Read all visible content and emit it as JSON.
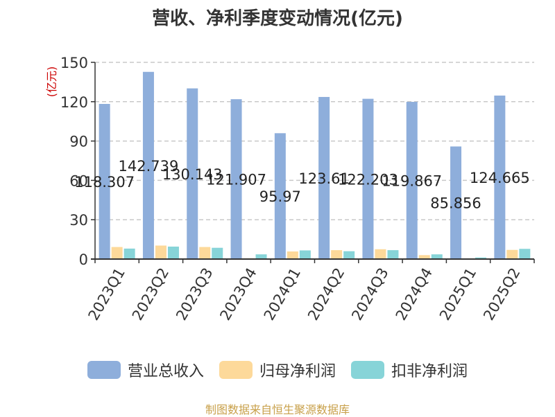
{
  "title": "营收、净利季度变动情况(亿元)",
  "source": "制图数据来自恒生聚源数据库",
  "chart_data": {
    "type": "bar",
    "title": "营收、净利季度变动情况(亿元)",
    "ylabel": "(亿元)",
    "ylim": [
      0,
      150
    ],
    "yticks": [
      0,
      30,
      60,
      90,
      120,
      150
    ],
    "grid": true,
    "legend_position": "bottom",
    "categories": [
      "2023Q1",
      "2023Q2",
      "2023Q3",
      "2023Q4",
      "2024Q1",
      "2024Q2",
      "2024Q3",
      "2024Q4",
      "2025Q1",
      "2025Q2"
    ],
    "series": [
      {
        "name": "营业总收入",
        "color": "#8eaedb",
        "values": [
          118.307,
          142.739,
          130.143,
          121.907,
          95.97,
          123.61,
          122.203,
          119.867,
          85.856,
          124.665
        ],
        "labels": [
          "118.307",
          "142.739",
          "130.143",
          "121.907",
          "95.97",
          "123.61",
          "122.203",
          "119.867",
          "85.856",
          "124.665"
        ]
      },
      {
        "name": "归母净利润",
        "color": "#fdd99a",
        "values": [
          9.2,
          10.3,
          9.2,
          0.6,
          5.8,
          6.8,
          7.5,
          3.0,
          0.4,
          7.0
        ]
      },
      {
        "name": "扣非净利润",
        "color": "#87d4d8",
        "values": [
          8.0,
          9.5,
          8.6,
          3.6,
          6.6,
          6.0,
          6.8,
          3.6,
          1.2,
          7.8
        ]
      }
    ]
  }
}
